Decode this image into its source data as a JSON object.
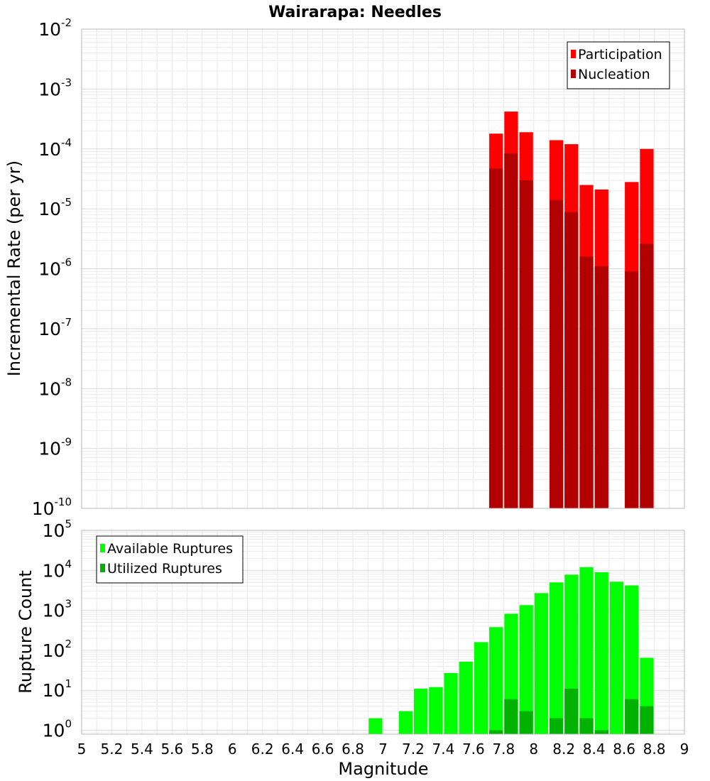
{
  "chart_data": [
    {
      "type": "bar",
      "title": "Wairarapa: Needles",
      "xlabel": "",
      "ylabel": "Incremental Rate (per yr)",
      "yscale": "log",
      "ylim": [
        1e-10,
        0.01
      ],
      "xlim": [
        5,
        9
      ],
      "grid": true,
      "legend_position": "top-right",
      "bar_width": 0.1,
      "x": [
        7.75,
        7.85,
        7.95,
        8.15,
        8.25,
        8.35,
        8.45,
        8.65,
        8.75
      ],
      "series": [
        {
          "name": "Participation",
          "color": "#ff0000",
          "values": [
            0.00018,
            0.00042,
            0.00019,
            0.00014,
            0.00012,
            2.5e-05,
            2.1e-05,
            2.8e-05,
            0.0001
          ]
        },
        {
          "name": "Nucleation",
          "color": "#b20000",
          "values": [
            4.7e-05,
            8.4e-05,
            3e-05,
            1.4e-05,
            8.8e-06,
            1.6e-06,
            1.1e-06,
            9e-07,
            2.6e-06
          ]
        }
      ]
    },
    {
      "type": "bar",
      "title": "",
      "xlabel": "Magnitude",
      "ylabel": "Rupture Count",
      "yscale": "log",
      "ylim": [
        0.8,
        100000
      ],
      "xlim": [
        5,
        9
      ],
      "grid": true,
      "legend_position": "top-left",
      "bar_width": 0.1,
      "x": [
        6.95,
        7.15,
        7.25,
        7.35,
        7.45,
        7.55,
        7.65,
        7.75,
        7.85,
        7.95,
        8.05,
        8.15,
        8.25,
        8.35,
        8.45,
        8.55,
        8.65,
        8.75
      ],
      "x_ticks": [
        "5",
        "5.2",
        "5.4",
        "5.6",
        "5.8",
        "6",
        "6.2",
        "6.4",
        "6.6",
        "6.8",
        "7",
        "7.2",
        "7.4",
        "7.6",
        "7.8",
        "8",
        "8.2",
        "8.4",
        "8.6",
        "8.8",
        "9"
      ],
      "series": [
        {
          "name": "Available Ruptures",
          "color": "#00ff00",
          "values": [
            2,
            3,
            11,
            12,
            27,
            52,
            160,
            380,
            820,
            1350,
            2700,
            5000,
            7800,
            12000,
            9000,
            5200,
            4200,
            65
          ]
        },
        {
          "name": "Utilized Ruptures",
          "color": "#00b200",
          "values": [
            0,
            0,
            0,
            0,
            0,
            0,
            0,
            1,
            6,
            3,
            0,
            2,
            11,
            2,
            1,
            0,
            6,
            4
          ]
        }
      ]
    }
  ]
}
